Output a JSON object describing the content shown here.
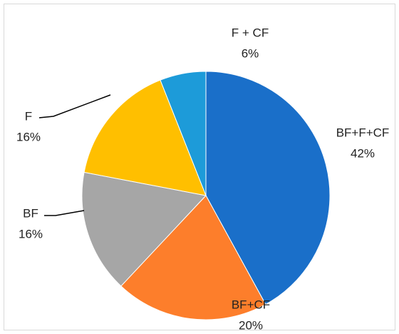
{
  "chart_data": {
    "type": "pie",
    "categories": [
      "BF+F+CF",
      "BF+CF",
      "BF",
      "F",
      "F + CF"
    ],
    "values": [
      42,
      20,
      16,
      16,
      6
    ],
    "value_labels": [
      "42%",
      "20%",
      "16%",
      "16%",
      "6%"
    ],
    "colors": [
      "#1a6fc9",
      "#fd7e2b",
      "#a6a6a6",
      "#ffbf00",
      "#1d9bd9"
    ]
  }
}
